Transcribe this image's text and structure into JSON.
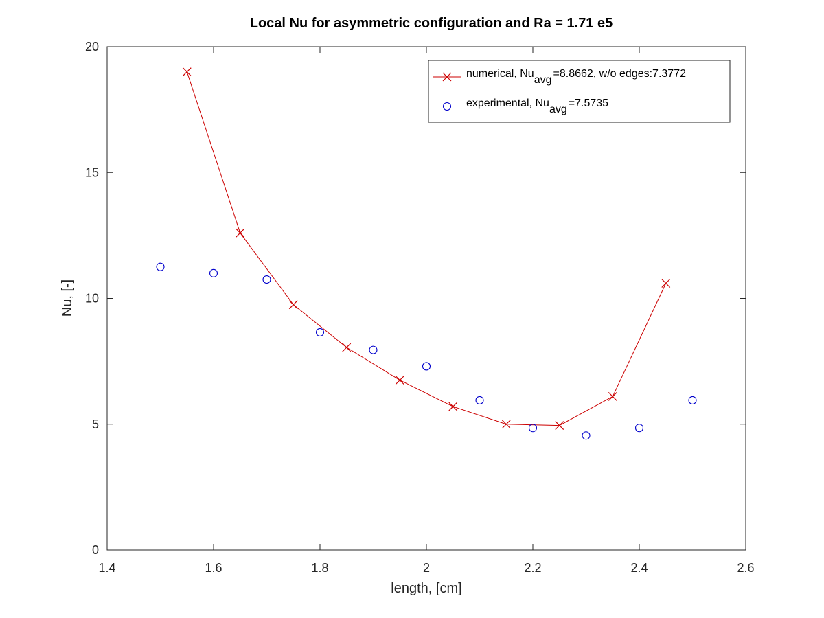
{
  "chart_data": {
    "type": "line",
    "title": "Local Nu for asymmetric configuration and Ra = 1.71 e5",
    "xlabel": "length, [cm]",
    "ylabel": "Nu, [-]",
    "xlim": [
      1.4,
      2.6
    ],
    "ylim": [
      0,
      20
    ],
    "xticks": [
      1.4,
      1.6,
      1.8,
      2,
      2.2,
      2.4,
      2.6
    ],
    "xtick_labels": [
      "1.4",
      "1.6",
      "1.8",
      "2",
      "2.2",
      "2.4",
      "2.6"
    ],
    "yticks": [
      0,
      5,
      10,
      15,
      20
    ],
    "ytick_labels": [
      "0",
      "5",
      "10",
      "15",
      "20"
    ],
    "grid": false,
    "legend_position": "top-right",
    "series": [
      {
        "name": "numerical",
        "legend": {
          "prefix": "numerical, Nu",
          "sub": "avg",
          "suffix": "=8.8662, w/o edges:7.3772"
        },
        "style": "line-with-x-markers",
        "color": "#cc0000",
        "x": [
          1.55,
          1.65,
          1.75,
          1.85,
          1.95,
          2.05,
          2.15,
          2.25,
          2.35,
          2.45
        ],
        "y": [
          19.0,
          12.6,
          9.75,
          8.05,
          6.75,
          5.7,
          5.0,
          4.95,
          6.1,
          10.6
        ]
      },
      {
        "name": "experimental",
        "legend": {
          "prefix": "experimental, Nu",
          "sub": "avg",
          "suffix": "=7.5735"
        },
        "style": "circle-markers",
        "color": "#0000cc",
        "x": [
          1.5,
          1.6,
          1.7,
          1.8,
          1.9,
          2.0,
          2.1,
          2.2,
          2.3,
          2.4,
          2.5
        ],
        "y": [
          11.25,
          11.0,
          10.75,
          8.65,
          7.95,
          7.3,
          5.95,
          4.85,
          4.55,
          4.85,
          5.95
        ]
      }
    ]
  }
}
